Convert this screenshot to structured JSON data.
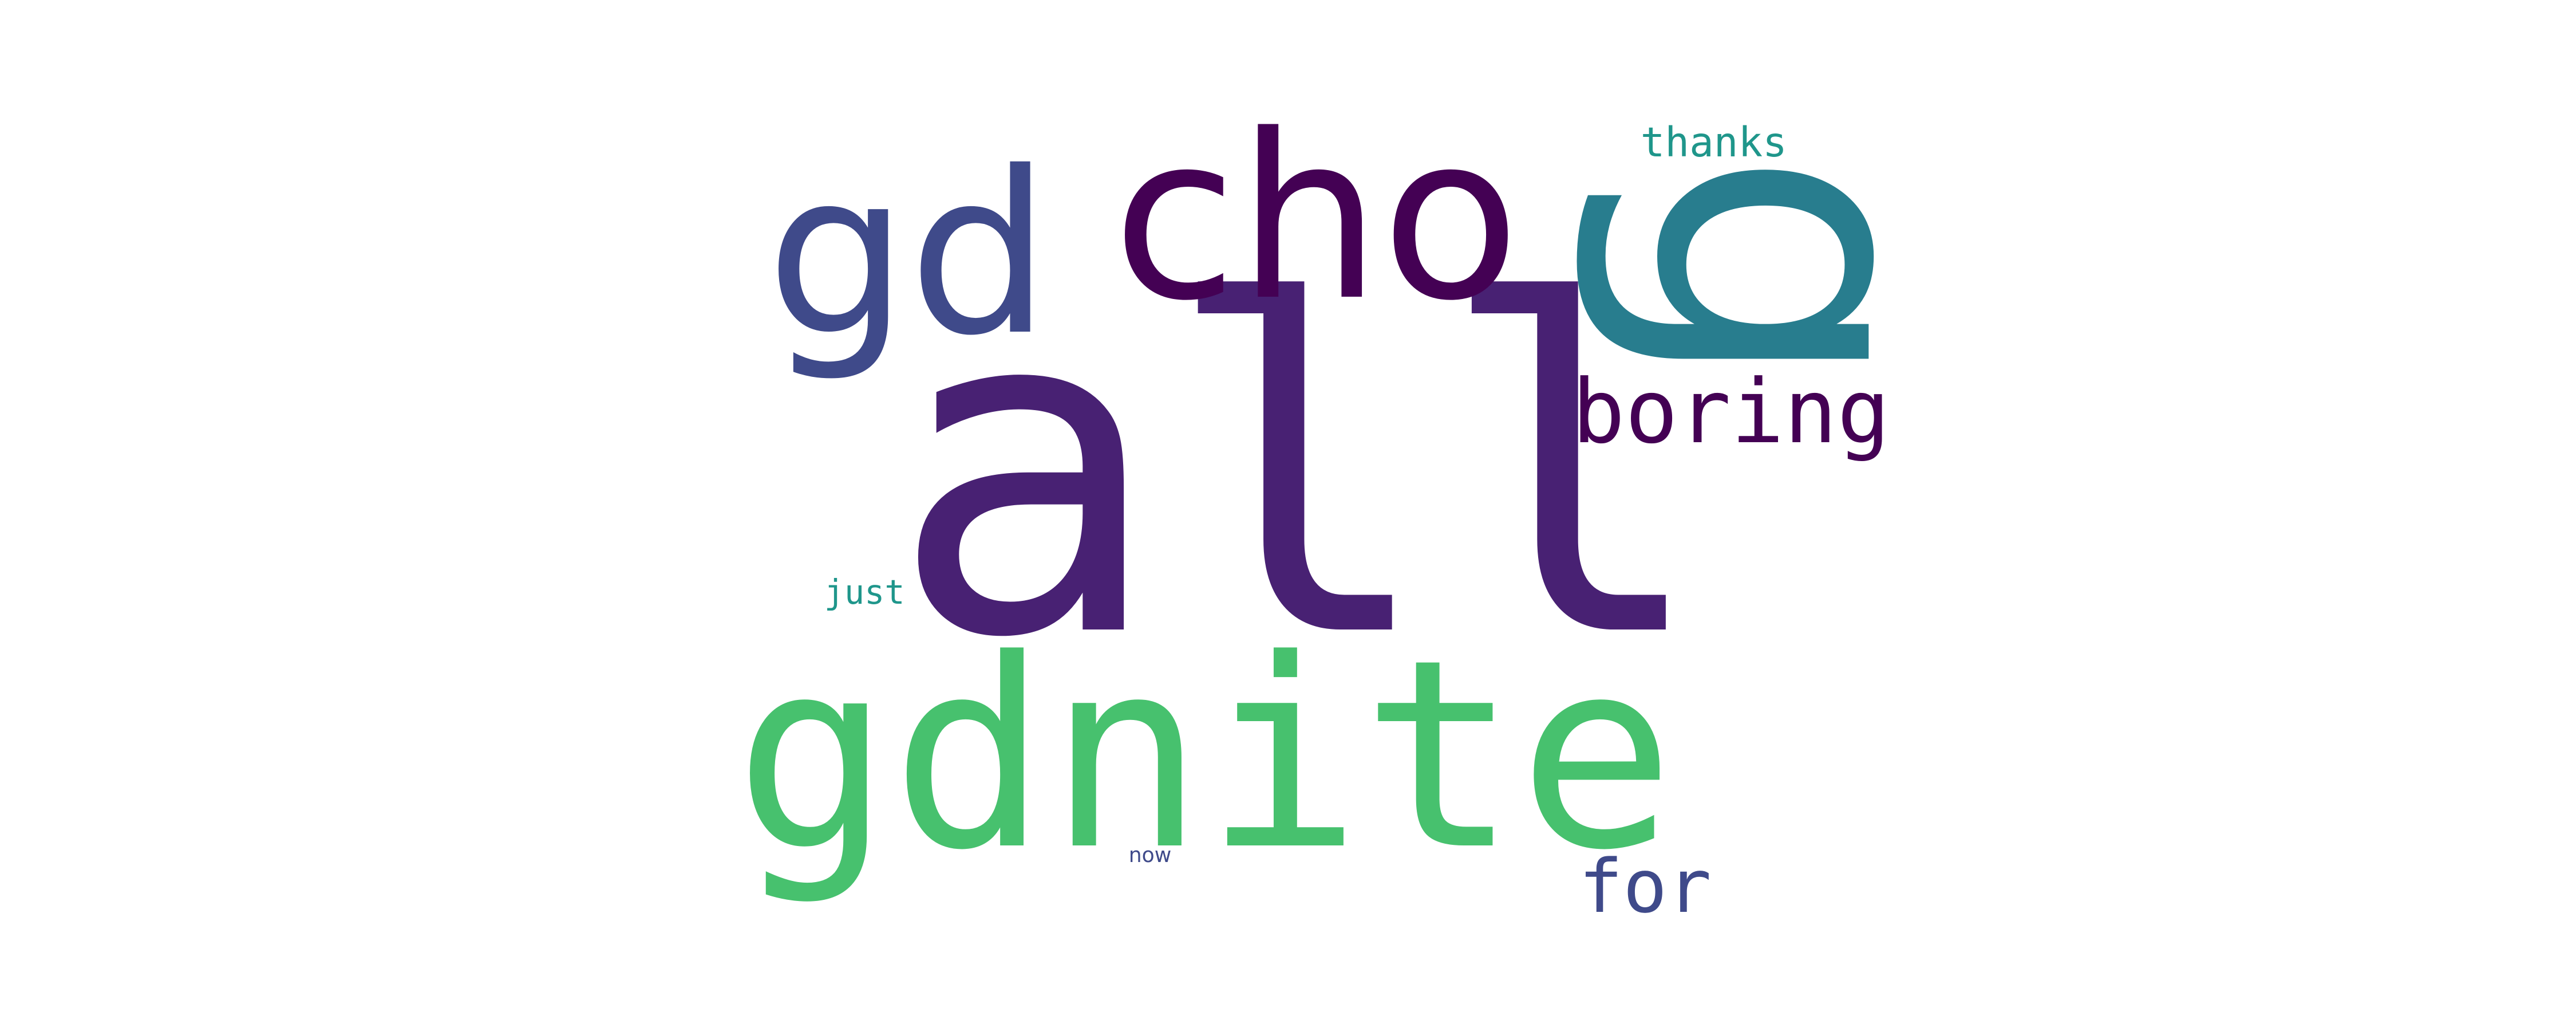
{
  "wordcloud": {
    "words": [
      {
        "id": "all",
        "text": "all",
        "color": "#482173",
        "orientation": "horizontal"
      },
      {
        "id": "gdnite",
        "text": "gdnite",
        "color": "#47c16e",
        "orientation": "horizontal"
      },
      {
        "id": "cho",
        "text": "cho",
        "color": "#440154",
        "orientation": "horizontal"
      },
      {
        "id": "gd",
        "text": "gd",
        "color": "#3f4a8a",
        "orientation": "horizontal"
      },
      {
        "id": "g",
        "text": "g",
        "color": "#287d8e",
        "orientation": "vertical"
      },
      {
        "id": "boring",
        "text": "boring",
        "color": "#440154",
        "orientation": "horizontal"
      },
      {
        "id": "thanks",
        "text": "thanks",
        "color": "#1f968b",
        "orientation": "horizontal"
      },
      {
        "id": "for",
        "text": "for",
        "color": "#3f4a8a",
        "orientation": "horizontal"
      },
      {
        "id": "just",
        "text": "just",
        "color": "#1f968b",
        "orientation": "horizontal"
      },
      {
        "id": "now",
        "text": "now",
        "color": "#3f4a8a",
        "orientation": "horizontal"
      }
    ]
  }
}
